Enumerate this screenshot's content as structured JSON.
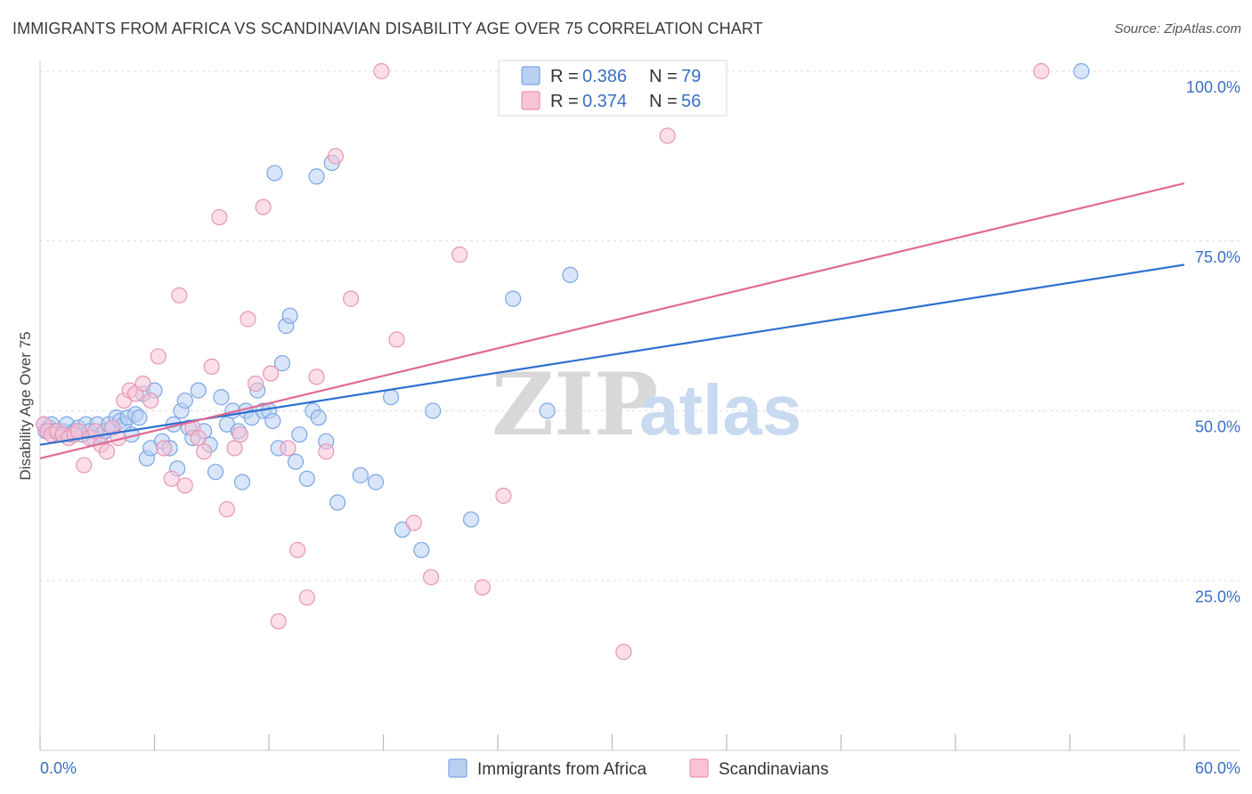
{
  "title": "IMMIGRANTS FROM AFRICA VS SCANDINAVIAN DISABILITY AGE OVER 75 CORRELATION CHART",
  "source": "Source: ZipAtlas.com",
  "watermark": {
    "zip": "ZIP",
    "atlas": "atlas"
  },
  "chart_data": {
    "type": "scatter",
    "ylabel": "Disability Age Over 75",
    "xlim": [
      0,
      60
    ],
    "ylim": [
      0,
      100
    ],
    "x_tick_labels": [
      "0.0%",
      "60.0%"
    ],
    "y_ticks": [
      {
        "value": 100,
        "label": "100.0%"
      },
      {
        "value": 75,
        "label": "75.0%"
      },
      {
        "value": 50,
        "label": "50.0%"
      },
      {
        "value": 25,
        "label": "25.0%"
      }
    ],
    "grid": true,
    "legend": {
      "position": "top-center",
      "entries": [
        {
          "r_label": "R =",
          "r_value": "0.386",
          "n_label": "N =",
          "n_value": "79"
        },
        {
          "r_label": "R =",
          "r_value": "0.374",
          "n_label": "N =",
          "n_value": "56"
        }
      ]
    },
    "series": [
      {
        "name": "Immigrants from Africa",
        "color": "#7aa6e6",
        "fill": "#b9d0f2",
        "line_color": "#2e6fd0",
        "trend": {
          "x": [
            0,
            60
          ],
          "y": [
            45,
            71.5
          ]
        },
        "points": [
          [
            0.2,
            48
          ],
          [
            0.3,
            47
          ],
          [
            0.5,
            47.5
          ],
          [
            0.6,
            48
          ],
          [
            0.8,
            47
          ],
          [
            1.0,
            46.5
          ],
          [
            1.2,
            47
          ],
          [
            1.4,
            48
          ],
          [
            1.6,
            46.5
          ],
          [
            1.8,
            47
          ],
          [
            2.0,
            47.5
          ],
          [
            2.2,
            46.5
          ],
          [
            2.4,
            48
          ],
          [
            2.6,
            47
          ],
          [
            2.8,
            46
          ],
          [
            3.0,
            48
          ],
          [
            3.2,
            46.5
          ],
          [
            3.4,
            47
          ],
          [
            3.6,
            48
          ],
          [
            3.8,
            47.5
          ],
          [
            4.0,
            49
          ],
          [
            4.2,
            48.5
          ],
          [
            4.4,
            48
          ],
          [
            4.6,
            49
          ],
          [
            4.8,
            46.5
          ],
          [
            5.0,
            49.5
          ],
          [
            5.2,
            49
          ],
          [
            5.4,
            52.5
          ],
          [
            5.6,
            43
          ],
          [
            5.8,
            44.5
          ],
          [
            6.0,
            53
          ],
          [
            6.4,
            45.5
          ],
          [
            6.8,
            44.5
          ],
          [
            7.0,
            48
          ],
          [
            7.2,
            41.5
          ],
          [
            7.4,
            50
          ],
          [
            7.6,
            51.5
          ],
          [
            7.8,
            47.5
          ],
          [
            8.0,
            46
          ],
          [
            8.3,
            53
          ],
          [
            8.6,
            47
          ],
          [
            8.9,
            45
          ],
          [
            9.2,
            41
          ],
          [
            9.5,
            52
          ],
          [
            9.8,
            48
          ],
          [
            10.1,
            50
          ],
          [
            10.4,
            47
          ],
          [
            10.6,
            39.5
          ],
          [
            10.8,
            50
          ],
          [
            11.1,
            49
          ],
          [
            11.4,
            53
          ],
          [
            11.7,
            50
          ],
          [
            12.0,
            50
          ],
          [
            12.2,
            48.5
          ],
          [
            12.5,
            44.5
          ],
          [
            12.7,
            57
          ],
          [
            12.9,
            62.5
          ],
          [
            13.1,
            64
          ],
          [
            13.4,
            42.5
          ],
          [
            13.6,
            46.5
          ],
          [
            14.0,
            40
          ],
          [
            14.3,
            50
          ],
          [
            14.6,
            49
          ],
          [
            15.0,
            45.5
          ],
          [
            15.3,
            86.5
          ],
          [
            15.6,
            36.5
          ],
          [
            16.8,
            40.5
          ],
          [
            17.6,
            39.5
          ],
          [
            18.4,
            52
          ],
          [
            19.0,
            32.5
          ],
          [
            20.0,
            29.5
          ],
          [
            20.6,
            50
          ],
          [
            22.6,
            34
          ],
          [
            24.8,
            66.5
          ],
          [
            26.6,
            50
          ],
          [
            27.8,
            70
          ],
          [
            12.3,
            85
          ],
          [
            14.5,
            84.5
          ],
          [
            54.6,
            100
          ]
        ],
        "points_note": ""
      },
      {
        "name": "Scandinavians",
        "color": "#e896b4",
        "fill": "#f7c3d5",
        "line_color": "#e06a93",
        "trend": {
          "x": [
            0,
            60
          ],
          "y": [
            43,
            83.5
          ]
        },
        "points": [
          [
            0.2,
            48
          ],
          [
            0.4,
            47
          ],
          [
            0.6,
            46.5
          ],
          [
            0.9,
            47
          ],
          [
            1.2,
            46.5
          ],
          [
            1.5,
            46
          ],
          [
            1.8,
            46.5
          ],
          [
            2.0,
            47
          ],
          [
            2.3,
            42
          ],
          [
            2.6,
            46
          ],
          [
            2.9,
            47
          ],
          [
            3.2,
            45
          ],
          [
            3.5,
            44
          ],
          [
            3.8,
            47.5
          ],
          [
            4.1,
            46
          ],
          [
            4.4,
            51.5
          ],
          [
            4.7,
            53
          ],
          [
            5.0,
            52.5
          ],
          [
            5.4,
            54
          ],
          [
            5.8,
            51.5
          ],
          [
            6.2,
            58
          ],
          [
            6.5,
            44.5
          ],
          [
            6.9,
            40
          ],
          [
            7.3,
            67
          ],
          [
            7.6,
            39
          ],
          [
            8.0,
            47.5
          ],
          [
            8.3,
            46
          ],
          [
            8.6,
            44
          ],
          [
            9.0,
            56.5
          ],
          [
            9.4,
            78.5
          ],
          [
            9.8,
            35.5
          ],
          [
            10.2,
            44.5
          ],
          [
            10.5,
            46.5
          ],
          [
            10.9,
            63.5
          ],
          [
            11.3,
            54
          ],
          [
            11.7,
            80
          ],
          [
            12.1,
            55.5
          ],
          [
            12.5,
            19
          ],
          [
            13.0,
            44.5
          ],
          [
            13.5,
            29.5
          ],
          [
            14.0,
            22.5
          ],
          [
            14.5,
            55
          ],
          [
            15.0,
            44
          ],
          [
            15.5,
            87.5
          ],
          [
            16.3,
            66.5
          ],
          [
            17.9,
            100
          ],
          [
            18.7,
            60.5
          ],
          [
            19.6,
            33.5
          ],
          [
            20.5,
            25.5
          ],
          [
            22.0,
            73
          ],
          [
            23.2,
            24
          ],
          [
            24.3,
            37.5
          ],
          [
            27.0,
            100
          ],
          [
            30.6,
            14.5
          ],
          [
            32.9,
            90.5
          ],
          [
            52.5,
            100
          ]
        ]
      }
    ]
  }
}
